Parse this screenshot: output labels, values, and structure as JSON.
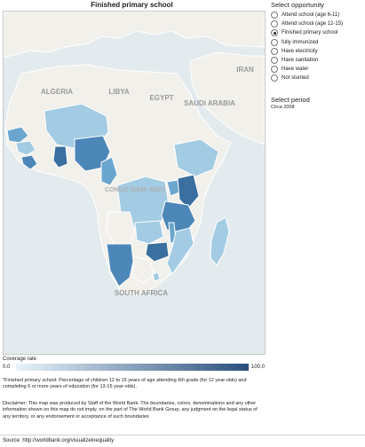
{
  "title": "Finished primary school",
  "opportunity": {
    "heading": "Select opportunity",
    "options": [
      {
        "label": "Attend school (age 6-11)",
        "selected": false
      },
      {
        "label": "Attend school (age 12-15)",
        "selected": false
      },
      {
        "label": "Finished primary school",
        "selected": true
      },
      {
        "label": "fully immunized",
        "selected": false
      },
      {
        "label": "Have electricity",
        "selected": false
      },
      {
        "label": "Have sanitation",
        "selected": false
      },
      {
        "label": "Have water",
        "selected": false
      },
      {
        "label": "Not stunted",
        "selected": false
      }
    ]
  },
  "period": {
    "heading": "Select period",
    "value": "Circa 2008"
  },
  "map": {
    "labels": {
      "algeria": "ALGERIA",
      "libya": "LIBYA",
      "egypt": "EGYPT",
      "saudi": "SAUDI ARABIA",
      "iran": "IRAN",
      "congo": "CONGO (DEM. REP.)",
      "southafrica": "SOUTH AFRICA"
    },
    "colors": {
      "water": "#e3ebef",
      "land": "#f2f0ea",
      "border": "#ffffff",
      "light": "#a3cbe3",
      "medium": "#6aa6cd",
      "dark": "#4d87b8",
      "darkest": "#3a6f9f"
    }
  },
  "legend": {
    "title": "Coverage rate",
    "min": "0.0",
    "max": "100.0"
  },
  "footnote": "*Finished primary school: Percentage of children 12 to 15 years of age attending 6th grade (for 12 year-olds) and completing 6 or more years of education (for 13-15 year-olds).",
  "disclaimer": "Disclaimer: This map was produced by Staff of the World Bank. The boundaries, colors, denominations and any other information shown on this map do not imply, on the part of The World Bank Group, any judgment on the legal status of any territory, or any endorsement or acceptance of such boundaries",
  "source": "Source: http://worldbank.org/visualizeinequality"
}
